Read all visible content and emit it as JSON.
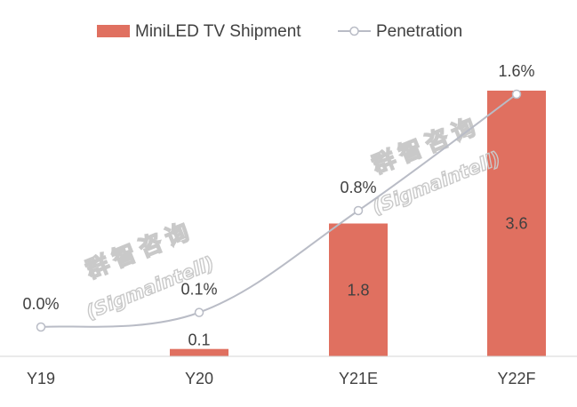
{
  "chart_data": {
    "type": "bar+line",
    "categories": [
      "Y19",
      "Y20",
      "Y21E",
      "Y22F"
    ],
    "series": [
      {
        "name": "MiniLED TV Shipment",
        "type": "bar",
        "values": [
          0,
          0.1,
          1.8,
          3.6
        ],
        "value_labels": [
          "",
          "0.1",
          "1.8",
          "3.6"
        ],
        "color": "#e07060"
      },
      {
        "name": "Penetration",
        "type": "line",
        "axis": "secondary",
        "values": [
          0.0,
          0.1,
          0.8,
          1.6
        ],
        "value_labels": [
          "0.0%",
          "0.1%",
          "0.8%",
          "1.6%"
        ],
        "color": "#b9bcc6"
      }
    ],
    "y_primary_range": [
      0,
      3.6
    ],
    "y_secondary_range": [
      0,
      1.6
    ],
    "gridlines": false,
    "legend_position": "top",
    "watermark": [
      "群智咨询",
      "(Sigmaintell)"
    ]
  }
}
